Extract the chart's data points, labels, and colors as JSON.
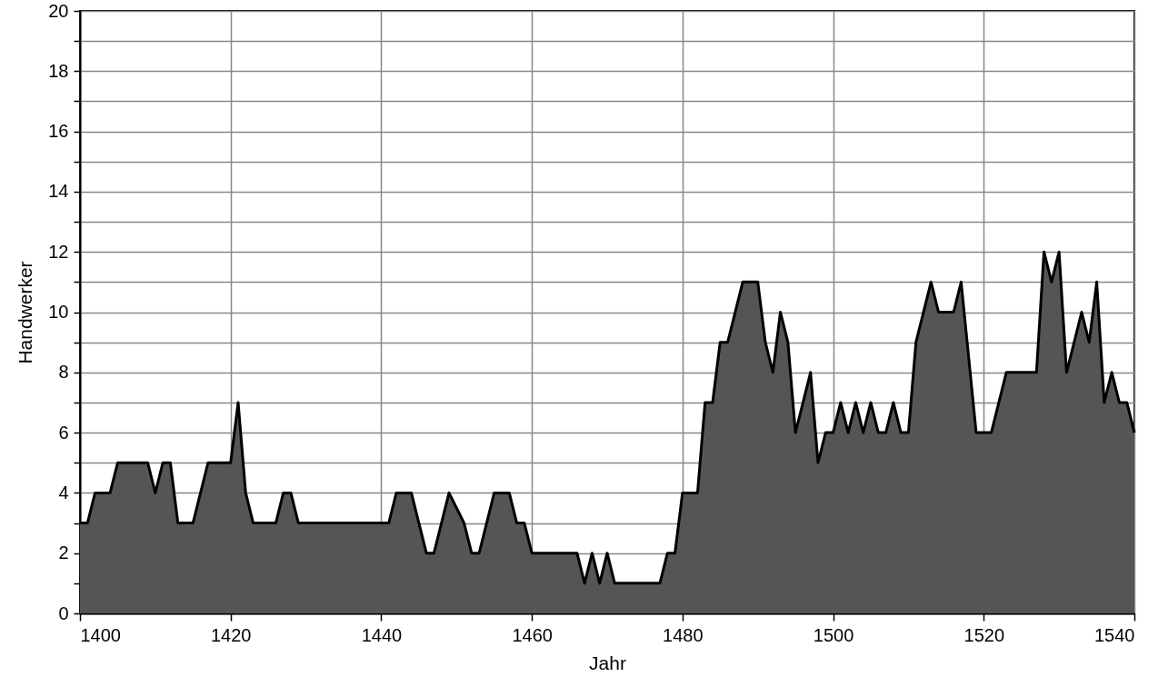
{
  "chart_data": {
    "type": "area",
    "xlabel": "Jahr",
    "ylabel": "Handwerker",
    "xlim": [
      1400,
      1540
    ],
    "xticks": [
      1400,
      1420,
      1440,
      1460,
      1480,
      1500,
      1520,
      1540
    ],
    "ylim": [
      0,
      20
    ],
    "yticks": [
      0,
      {
        "value": 1,
        "label": null
      },
      2,
      {
        "value": 3,
        "label": null
      },
      4,
      {
        "value": 5,
        "label": null
      },
      6,
      {
        "value": 7,
        "label": null
      },
      8,
      {
        "value": 9,
        "label": null
      },
      10,
      {
        "value": 11,
        "label": null
      },
      12,
      {
        "value": 13,
        "label": null
      },
      14,
      {
        "value": 15,
        "label": null
      },
      16,
      {
        "value": 17,
        "label": null
      },
      18,
      {
        "value": 19,
        "label": null
      },
      20
    ],
    "grid": true,
    "series": [
      {
        "color": "#555555",
        "x": [
          1400,
          1401,
          1402,
          1404,
          1405,
          1409,
          1410,
          1411,
          1412,
          1413,
          1415,
          1417,
          1420,
          1421,
          1422,
          1423,
          1426,
          1427,
          1428,
          1429,
          1441,
          1442,
          1444,
          1445,
          1446,
          1447,
          1449,
          1451,
          1452,
          1453,
          1455,
          1457,
          1458,
          1459,
          1460,
          1466,
          1467,
          1468,
          1469,
          1470,
          1471,
          1477,
          1478,
          1479,
          1480,
          1482,
          1483,
          1484,
          1485,
          1486,
          1488,
          1490,
          1491,
          1492,
          1493,
          1494,
          1495,
          1497,
          1498,
          1499,
          1500,
          1501,
          1502,
          1503,
          1504,
          1505,
          1506,
          1507,
          1508,
          1509,
          1510,
          1511,
          1513,
          1514,
          1516,
          1517,
          1519,
          1521,
          1523,
          1527,
          1528,
          1529,
          1530,
          1531,
          1533,
          1534,
          1535,
          1536,
          1537,
          1538,
          1539,
          1540
        ],
        "values": [
          3,
          3,
          4,
          4,
          5,
          5,
          4,
          5,
          5,
          3,
          3,
          5,
          5,
          7,
          4,
          3,
          3,
          4,
          4,
          3,
          3,
          4,
          4,
          3,
          2,
          2,
          4,
          3,
          2,
          2,
          4,
          4,
          3,
          3,
          2,
          2,
          1,
          2,
          1,
          2,
          1,
          1,
          2,
          2,
          4,
          4,
          7,
          7,
          9,
          9,
          11,
          11,
          9,
          8,
          10,
          9,
          6,
          8,
          5,
          6,
          6,
          7,
          6,
          7,
          6,
          7,
          6,
          6,
          7,
          6,
          6,
          9,
          11,
          10,
          10,
          11,
          6,
          6,
          8,
          8,
          12,
          11,
          12,
          8,
          10,
          9,
          11,
          7,
          8,
          7,
          7,
          6
        ]
      }
    ]
  }
}
